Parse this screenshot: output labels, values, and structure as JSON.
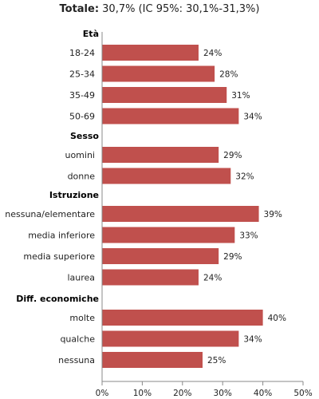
{
  "title": {
    "label": "Totale:",
    "text": " 30,7% (IC 95%: 30,1%-31,3%)"
  },
  "colors": {
    "bar": "#C0504D",
    "axis": "#888888"
  },
  "chart_data": {
    "type": "bar",
    "orientation": "horizontal",
    "title": "Totale: 30,7% (IC 95%: 30,1%-31,3%)",
    "xlim": [
      0,
      50
    ],
    "xticks": [
      "0%",
      "10%",
      "20%",
      "30%",
      "40%",
      "50%"
    ],
    "grid": false,
    "groups": [
      {
        "name": "Età",
        "categories": [
          "18-24",
          "25-34",
          "35-49",
          "50-69"
        ],
        "values": [
          24,
          28,
          31,
          34
        ],
        "labels": [
          "24%",
          "28%",
          "31%",
          "34%"
        ]
      },
      {
        "name": "Sesso",
        "categories": [
          "uomini",
          "donne"
        ],
        "values": [
          29,
          32
        ],
        "labels": [
          "29%",
          "32%"
        ]
      },
      {
        "name": "Istruzione",
        "categories": [
          "nessuna/elementare",
          "media inferiore",
          "media superiore",
          "laurea"
        ],
        "values": [
          39,
          33,
          29,
          24
        ],
        "labels": [
          "39%",
          "33%",
          "29%",
          "24%"
        ]
      },
      {
        "name": "Diff. economiche",
        "categories": [
          "molte",
          "qualche",
          "nessuna"
        ],
        "values": [
          40,
          34,
          25
        ],
        "labels": [
          "40%",
          "34%",
          "25%"
        ]
      }
    ]
  }
}
